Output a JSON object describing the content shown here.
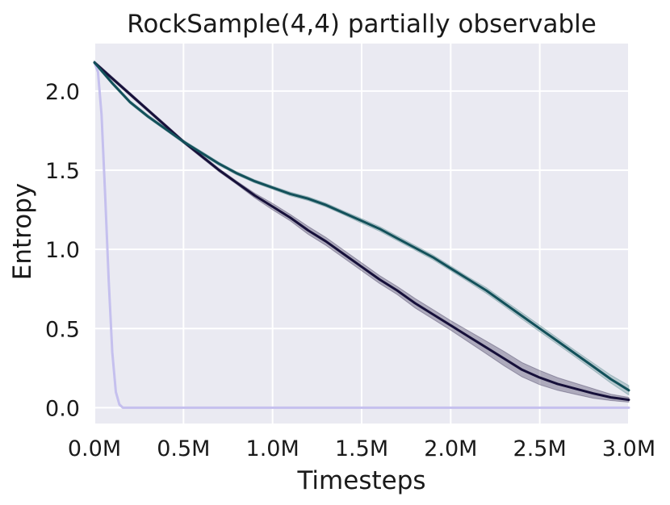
{
  "chart_data": {
    "type": "line",
    "title": "RockSample(4,4) partially observable",
    "xlabel": "Timesteps",
    "ylabel": "Entropy",
    "xlim": [
      0,
      3.0
    ],
    "ylim": [
      -0.1,
      2.3
    ],
    "x_unit": "M timesteps",
    "xticks": [
      0,
      0.5,
      1.0,
      1.5,
      2.0,
      2.5,
      3.0
    ],
    "xtick_labels": [
      "0.0M",
      "0.5M",
      "1.0M",
      "1.5M",
      "2.0M",
      "2.5M",
      "3.0M"
    ],
    "yticks": [
      0,
      0.5,
      1.0,
      1.5,
      2.0
    ],
    "ytick_labels": [
      "0.0",
      "0.5",
      "1.0",
      "1.5",
      "2.0"
    ],
    "grid": true,
    "background": "#eaeaf2",
    "series": [
      {
        "color": "#c5c0ee",
        "band_color": "#c5c0ee",
        "x": [
          0,
          0.02,
          0.04,
          0.06,
          0.08,
          0.1,
          0.12,
          0.14,
          0.16,
          0.2,
          0.5,
          1.0,
          1.5,
          2.0,
          2.5,
          3.0
        ],
        "y": [
          2.18,
          2.12,
          1.85,
          1.35,
          0.8,
          0.35,
          0.1,
          0.02,
          0.0,
          0.0,
          0.0,
          0.0,
          0.0,
          0.0,
          0.0,
          0.0
        ],
        "band": [
          0.01,
          0.01,
          0.02,
          0.02,
          0.02,
          0.02,
          0.01,
          0.01,
          0.0,
          0.0,
          0.0,
          0.0,
          0.0,
          0.0,
          0.0,
          0.0
        ]
      },
      {
        "color": "#16103a",
        "band_color": "#3d3558",
        "x": [
          0,
          0.1,
          0.2,
          0.3,
          0.4,
          0.5,
          0.6,
          0.7,
          0.8,
          0.9,
          1.0,
          1.1,
          1.2,
          1.3,
          1.4,
          1.5,
          1.6,
          1.7,
          1.8,
          1.9,
          2.0,
          2.1,
          2.2,
          2.3,
          2.4,
          2.5,
          2.6,
          2.7,
          2.8,
          2.9,
          3.0
        ],
        "y": [
          2.18,
          2.08,
          1.98,
          1.88,
          1.78,
          1.68,
          1.59,
          1.5,
          1.42,
          1.34,
          1.27,
          1.2,
          1.12,
          1.05,
          0.97,
          0.89,
          0.81,
          0.74,
          0.66,
          0.59,
          0.52,
          0.45,
          0.38,
          0.31,
          0.24,
          0.19,
          0.15,
          0.12,
          0.09,
          0.065,
          0.05
        ],
        "band": [
          0.01,
          0.01,
          0.01,
          0.01,
          0.01,
          0.01,
          0.01,
          0.01,
          0.01,
          0.015,
          0.02,
          0.02,
          0.025,
          0.025,
          0.025,
          0.025,
          0.025,
          0.025,
          0.03,
          0.03,
          0.03,
          0.035,
          0.04,
          0.045,
          0.045,
          0.045,
          0.04,
          0.035,
          0.03,
          0.02,
          0.015
        ]
      },
      {
        "color": "#12505a",
        "band_color": "#5a8a8e",
        "x": [
          0,
          0.1,
          0.2,
          0.3,
          0.4,
          0.5,
          0.6,
          0.7,
          0.8,
          0.9,
          1.0,
          1.1,
          1.2,
          1.3,
          1.4,
          1.5,
          1.6,
          1.7,
          1.8,
          1.9,
          2.0,
          2.1,
          2.2,
          2.3,
          2.4,
          2.5,
          2.6,
          2.7,
          2.8,
          2.9,
          3.0
        ],
        "y": [
          2.18,
          2.05,
          1.93,
          1.84,
          1.76,
          1.68,
          1.61,
          1.54,
          1.48,
          1.43,
          1.39,
          1.35,
          1.32,
          1.28,
          1.23,
          1.18,
          1.13,
          1.07,
          1.01,
          0.95,
          0.88,
          0.81,
          0.74,
          0.66,
          0.58,
          0.5,
          0.42,
          0.34,
          0.26,
          0.18,
          0.11
        ],
        "band": [
          0.01,
          0.01,
          0.01,
          0.01,
          0.01,
          0.01,
          0.01,
          0.01,
          0.01,
          0.01,
          0.01,
          0.012,
          0.012,
          0.012,
          0.012,
          0.015,
          0.015,
          0.015,
          0.015,
          0.015,
          0.015,
          0.015,
          0.018,
          0.018,
          0.02,
          0.02,
          0.02,
          0.02,
          0.022,
          0.025,
          0.03
        ]
      }
    ]
  }
}
